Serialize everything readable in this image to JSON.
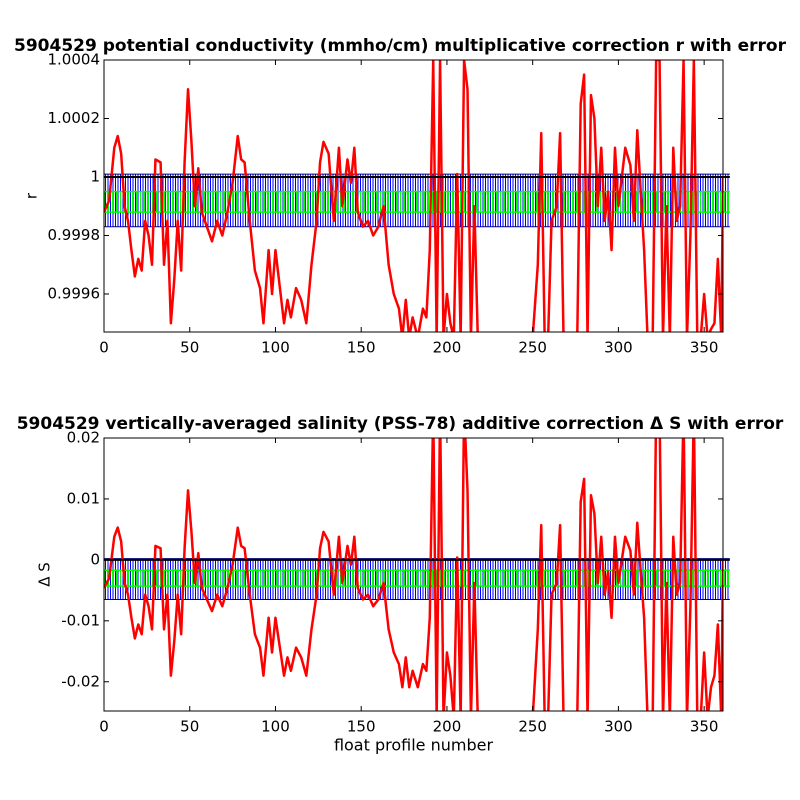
{
  "chart_data": [
    {
      "type": "line",
      "title": "5904529 potential conductivity (mmho/cm) multiplicative correction r with error",
      "ylabel": "r",
      "xlim": [
        0,
        361
      ],
      "ylim": [
        0.99947,
        1.0004
      ],
      "xticks": [
        0,
        50,
        100,
        150,
        200,
        250,
        300,
        350
      ],
      "yticks": [
        0.9996,
        0.9998,
        1,
        1.0002,
        1.0004
      ],
      "bands": [
        {
          "color": "#0000ff",
          "x": [
            0,
            365
          ],
          "lower": [
            0.99983,
            0.99983
          ],
          "upper": [
            1.00001,
            1.00001
          ]
        },
        {
          "color": "#00ff00",
          "x": [
            0,
            365
          ],
          "lower": [
            0.99988,
            0.99988
          ],
          "upper": [
            0.99995,
            0.99995
          ]
        }
      ],
      "series": [
        {
          "color": "#ff0000",
          "x": [
            0,
            3,
            6,
            8,
            10,
            12,
            14,
            16,
            18,
            20,
            22,
            24,
            26,
            28,
            30,
            33,
            35,
            37,
            39,
            41,
            43,
            45,
            47,
            49,
            51,
            53,
            55,
            57,
            60,
            63,
            66,
            69,
            72,
            75,
            78,
            80,
            82,
            85,
            88,
            91,
            93,
            96,
            98,
            100,
            103,
            105,
            107,
            109,
            112,
            115,
            118,
            121,
            124,
            126,
            128,
            131,
            134,
            137,
            139,
            142,
            144,
            146,
            148,
            151,
            154,
            157,
            160,
            163,
            166,
            169,
            172,
            174,
            176,
            178,
            180,
            183,
            186,
            188,
            190,
            192,
            194,
            196,
            198,
            200,
            202,
            204,
            206,
            208,
            210,
            212,
            214,
            216,
            218,
            222,
            250,
            253,
            255,
            257,
            259,
            261,
            264,
            266,
            268,
            270,
            273,
            276,
            278,
            280,
            282,
            284,
            286,
            288,
            290,
            292,
            294,
            296,
            298,
            300,
            302,
            304,
            307,
            309,
            311,
            313,
            315,
            317,
            320,
            322,
            324,
            326,
            328,
            330,
            332,
            334,
            336,
            338,
            340,
            342,
            344,
            346,
            348,
            350,
            352,
            354,
            356,
            358,
            360,
            361
          ],
          "values": [
            0.99988,
            0.99992,
            1.0001,
            1.00014,
            1.00008,
            0.9999,
            0.99985,
            0.99975,
            0.99966,
            0.99972,
            0.99968,
            0.99985,
            0.9998,
            0.9997,
            1.00006,
            1.00005,
            0.9997,
            0.99985,
            0.9995,
            0.99965,
            0.99985,
            0.99968,
            1.00005,
            1.0003,
            1.00012,
            0.9999,
            1.00003,
            0.99988,
            0.99983,
            0.99978,
            0.99985,
            0.9998,
            0.99988,
            0.99998,
            1.00014,
            1.00006,
            1.00005,
            0.99985,
            0.99968,
            0.99962,
            0.9995,
            0.99975,
            0.9996,
            0.99975,
            0.9996,
            0.9995,
            0.99958,
            0.99952,
            0.99962,
            0.99958,
            0.9995,
            0.9997,
            0.99985,
            1.00005,
            1.00012,
            1.00008,
            0.99985,
            1.0001,
            0.9999,
            1.00006,
            0.99998,
            1.0001,
            0.99988,
            0.99983,
            0.99985,
            0.9998,
            0.99983,
            0.9999,
            0.9997,
            0.9996,
            0.99955,
            0.99945,
            0.99958,
            0.99945,
            0.99952,
            0.99945,
            0.99955,
            0.99952,
            0.99975,
            1.0004,
            0.99945,
            1.0004,
            0.99945,
            0.9996,
            0.9995,
            0.99945,
            1.00001,
            0.99945,
            1.0004,
            1.0003,
            0.99945,
            0.9999,
            0.99945,
            0.99945,
            0.99945,
            0.9997,
            1.00015,
            0.99945,
            0.99945,
            0.99985,
            0.9999,
            1.00015,
            0.99945,
            0.99945,
            0.99945,
            0.99945,
            1.00025,
            1.00035,
            0.99945,
            1.00028,
            1.0002,
            0.9999,
            1.0001,
            0.99985,
            0.99995,
            0.99975,
            1.0001,
            0.9999,
            1,
            1.0001,
            1.00004,
            0.99985,
            1.00016,
            0.99995,
            0.99975,
            0.99945,
            0.99945,
            1.0004,
            1.0004,
            0.99945,
            0.9999,
            0.99945,
            1.0001,
            0.99985,
            0.9999,
            1.0004,
            0.99945,
            0.9998,
            1.0004,
            0.99945,
            0.99945,
            0.9996,
            0.99945,
            0.99948,
            0.9995,
            0.99972,
            0.99945,
            1
          ]
        },
        {
          "color": "#000000",
          "x": [
            0,
            365
          ],
          "values": [
            1,
            1
          ]
        }
      ]
    },
    {
      "type": "line",
      "title": "5904529 vertically-averaged salinity (PSS-78) additive correction Δ S with error",
      "ylabel": "Δ S",
      "xlabel": "float profile number",
      "xlim": [
        0,
        361
      ],
      "ylim": [
        -0.0248,
        0.02
      ],
      "xticks": [
        0,
        50,
        100,
        150,
        200,
        250,
        300,
        350
      ],
      "yticks": [
        -0.02,
        -0.01,
        0,
        0.01,
        0.02
      ],
      "bands": [
        {
          "color": "#0000ff",
          "x": [
            0,
            365
          ],
          "lower": [
            -0.0065,
            -0.0065
          ],
          "upper": [
            0.0002,
            0.0002
          ]
        },
        {
          "color": "#00ff00",
          "x": [
            0,
            365
          ],
          "lower": [
            -0.0043,
            -0.0043
          ],
          "upper": [
            -0.0017,
            -0.0017
          ]
        }
      ],
      "series": [
        {
          "color": "#ff0000",
          "x": [
            0,
            3,
            6,
            8,
            10,
            12,
            14,
            16,
            18,
            20,
            22,
            24,
            26,
            28,
            30,
            33,
            35,
            37,
            39,
            41,
            43,
            45,
            47,
            49,
            51,
            53,
            55,
            57,
            60,
            63,
            66,
            69,
            72,
            75,
            78,
            80,
            82,
            85,
            88,
            91,
            93,
            96,
            98,
            100,
            103,
            105,
            107,
            109,
            112,
            115,
            118,
            121,
            124,
            126,
            128,
            131,
            134,
            137,
            139,
            142,
            144,
            146,
            148,
            151,
            154,
            157,
            160,
            163,
            166,
            169,
            172,
            174,
            176,
            178,
            180,
            183,
            186,
            188,
            190,
            192,
            194,
            196,
            198,
            200,
            202,
            204,
            206,
            208,
            210,
            212,
            214,
            216,
            218,
            222,
            250,
            253,
            255,
            257,
            259,
            261,
            264,
            266,
            268,
            270,
            273,
            276,
            278,
            280,
            282,
            284,
            286,
            288,
            290,
            292,
            294,
            296,
            298,
            300,
            302,
            304,
            307,
            309,
            311,
            313,
            315,
            317,
            320,
            322,
            324,
            326,
            328,
            330,
            332,
            334,
            336,
            338,
            340,
            342,
            344,
            346,
            348,
            350,
            352,
            354,
            356,
            358,
            360,
            361
          ],
          "values": [
            -0.0046,
            -0.003,
            0.0038,
            0.0053,
            0.003,
            -0.0038,
            -0.0057,
            -0.0095,
            -0.0129,
            -0.0106,
            -0.0122,
            -0.0057,
            -0.0076,
            -0.0114,
            0.0023,
            0.0019,
            -0.0114,
            -0.0057,
            -0.019,
            -0.0133,
            -0.0057,
            -0.0122,
            0.0019,
            0.0114,
            0.0046,
            -0.0038,
            0.0011,
            -0.0046,
            -0.0065,
            -0.0084,
            -0.0057,
            -0.0076,
            -0.0046,
            -0.0008,
            0.0053,
            0.0023,
            0.0019,
            -0.0057,
            -0.0122,
            -0.0144,
            -0.019,
            -0.0095,
            -0.0152,
            -0.0095,
            -0.0152,
            -0.019,
            -0.016,
            -0.0182,
            -0.0144,
            -0.016,
            -0.019,
            -0.0114,
            -0.0057,
            0.0019,
            0.0046,
            0.003,
            -0.0057,
            0.0038,
            -0.0038,
            0.0023,
            -0.0008,
            0.0038,
            -0.0046,
            -0.0065,
            -0.0057,
            -0.0076,
            -0.0065,
            -0.0038,
            -0.0114,
            -0.0152,
            -0.0171,
            -0.0209,
            -0.016,
            -0.0209,
            -0.0182,
            -0.0209,
            -0.0171,
            -0.0182,
            -0.0095,
            0.025,
            -0.026,
            0.025,
            -0.026,
            -0.0152,
            -0.019,
            -0.026,
            0.0004,
            -0.026,
            0.025,
            0.0114,
            -0.026,
            -0.0038,
            -0.026,
            -0.026,
            -0.026,
            -0.0114,
            0.0057,
            -0.026,
            -0.026,
            -0.0057,
            -0.0038,
            0.0057,
            -0.026,
            -0.026,
            -0.026,
            -0.026,
            0.0095,
            0.0133,
            -0.026,
            0.0106,
            0.0076,
            -0.0038,
            0.0038,
            -0.0057,
            -0.0019,
            -0.0095,
            0.0038,
            -0.0038,
            0,
            0.0038,
            0.0015,
            -0.0057,
            0.0061,
            -0.0019,
            -0.0095,
            -0.026,
            -0.026,
            0.025,
            0.025,
            -0.026,
            -0.0038,
            -0.026,
            0.0038,
            -0.0057,
            -0.0038,
            0.025,
            -0.026,
            -0.0076,
            0.025,
            -0.026,
            -0.026,
            -0.0152,
            -0.026,
            -0.0209,
            -0.019,
            -0.0106,
            -0.026,
            0
          ]
        },
        {
          "color": "#000000",
          "x": [
            0,
            365
          ],
          "values": [
            0,
            0
          ]
        }
      ]
    }
  ]
}
